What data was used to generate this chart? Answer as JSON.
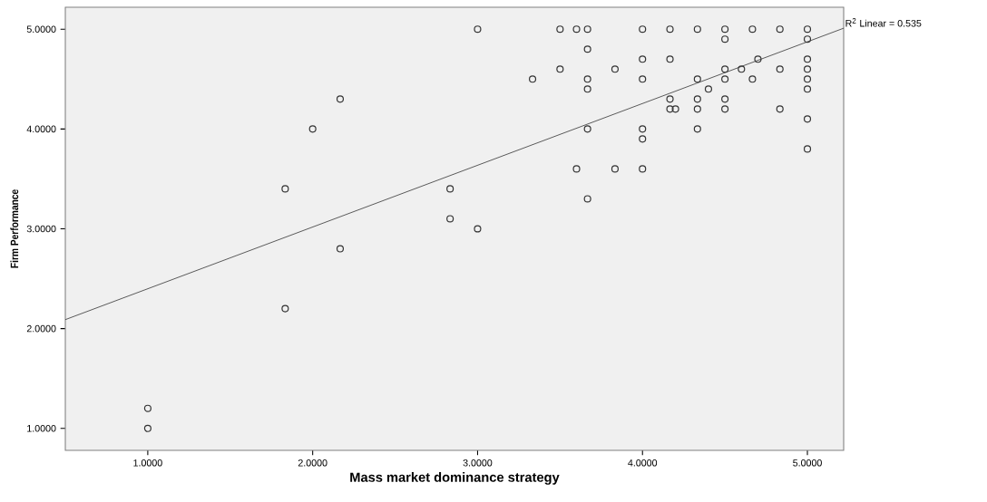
{
  "chart_data": {
    "type": "scatter",
    "xlabel": "Mass market dominance strategy",
    "ylabel": "Firm Performance",
    "xlim": [
      0.5,
      5.22
    ],
    "ylim": [
      0.78,
      5.22
    ],
    "xticks": [
      {
        "value": 1,
        "label": "1.0000"
      },
      {
        "value": 2,
        "label": "2.0000"
      },
      {
        "value": 3,
        "label": "3.0000"
      },
      {
        "value": 4,
        "label": "4.0000"
      },
      {
        "value": 5,
        "label": "5.0000"
      }
    ],
    "yticks": [
      {
        "value": 1,
        "label": "1.0000"
      },
      {
        "value": 2,
        "label": "2.0000"
      },
      {
        "value": 3,
        "label": "3.0000"
      },
      {
        "value": 4,
        "label": "4.0000"
      },
      {
        "value": 5,
        "label": "5.0000"
      }
    ],
    "grid": false,
    "annotations": [
      {
        "text": "R$^{2}$ Linear = 0.535",
        "x": 5.22,
        "y": 5.01
      }
    ],
    "series": [
      {
        "marker": "circle",
        "color": "#333333",
        "x": [
          1.0,
          1.0,
          1.8333,
          1.8333,
          2.0,
          2.1667,
          2.1667,
          2.8333,
          2.8333,
          3.0,
          3.0,
          3.3333,
          3.5,
          3.5,
          3.6,
          3.6,
          3.6667,
          3.6667,
          3.6667,
          3.6667,
          3.6667,
          3.6667,
          3.8333,
          3.8333,
          4.0,
          4.0,
          4.0,
          4.0,
          4.0,
          4.0,
          4.1667,
          4.1667,
          4.1667,
          4.1667,
          4.2,
          4.3333,
          4.3333,
          4.3333,
          4.3333,
          4.3333,
          4.4,
          4.5,
          4.5,
          4.5,
          4.5,
          4.5,
          4.5,
          4.6,
          4.6667,
          4.6667,
          4.7,
          4.8333,
          4.8333,
          4.8333,
          5.0,
          5.0,
          5.0,
          5.0,
          5.0,
          5.0,
          5.0,
          5.0
        ],
        "values": [
          1.2,
          1.0,
          3.4,
          2.2,
          4.0,
          4.3,
          2.8,
          3.4,
          3.1,
          5.0,
          3.0,
          4.5,
          5.0,
          4.6,
          5.0,
          3.6,
          5.0,
          4.8,
          4.5,
          4.4,
          4.0,
          3.3,
          4.6,
          3.6,
          5.0,
          4.7,
          4.5,
          4.0,
          3.9,
          3.6,
          5.0,
          4.7,
          4.3,
          4.2,
          4.2,
          5.0,
          4.5,
          4.3,
          4.2,
          4.0,
          4.4,
          5.0,
          4.9,
          4.6,
          4.5,
          4.3,
          4.2,
          4.6,
          5.0,
          4.5,
          4.7,
          5.0,
          4.6,
          4.2,
          5.0,
          4.9,
          4.7,
          4.6,
          4.5,
          4.4,
          4.1,
          3.8
        ]
      },
      {
        "type": "line",
        "marker": "none",
        "line_style": "solid",
        "color": "#333333",
        "x": [
          0.5,
          5.22
        ],
        "values": [
          2.09,
          5.01
        ]
      }
    ]
  }
}
